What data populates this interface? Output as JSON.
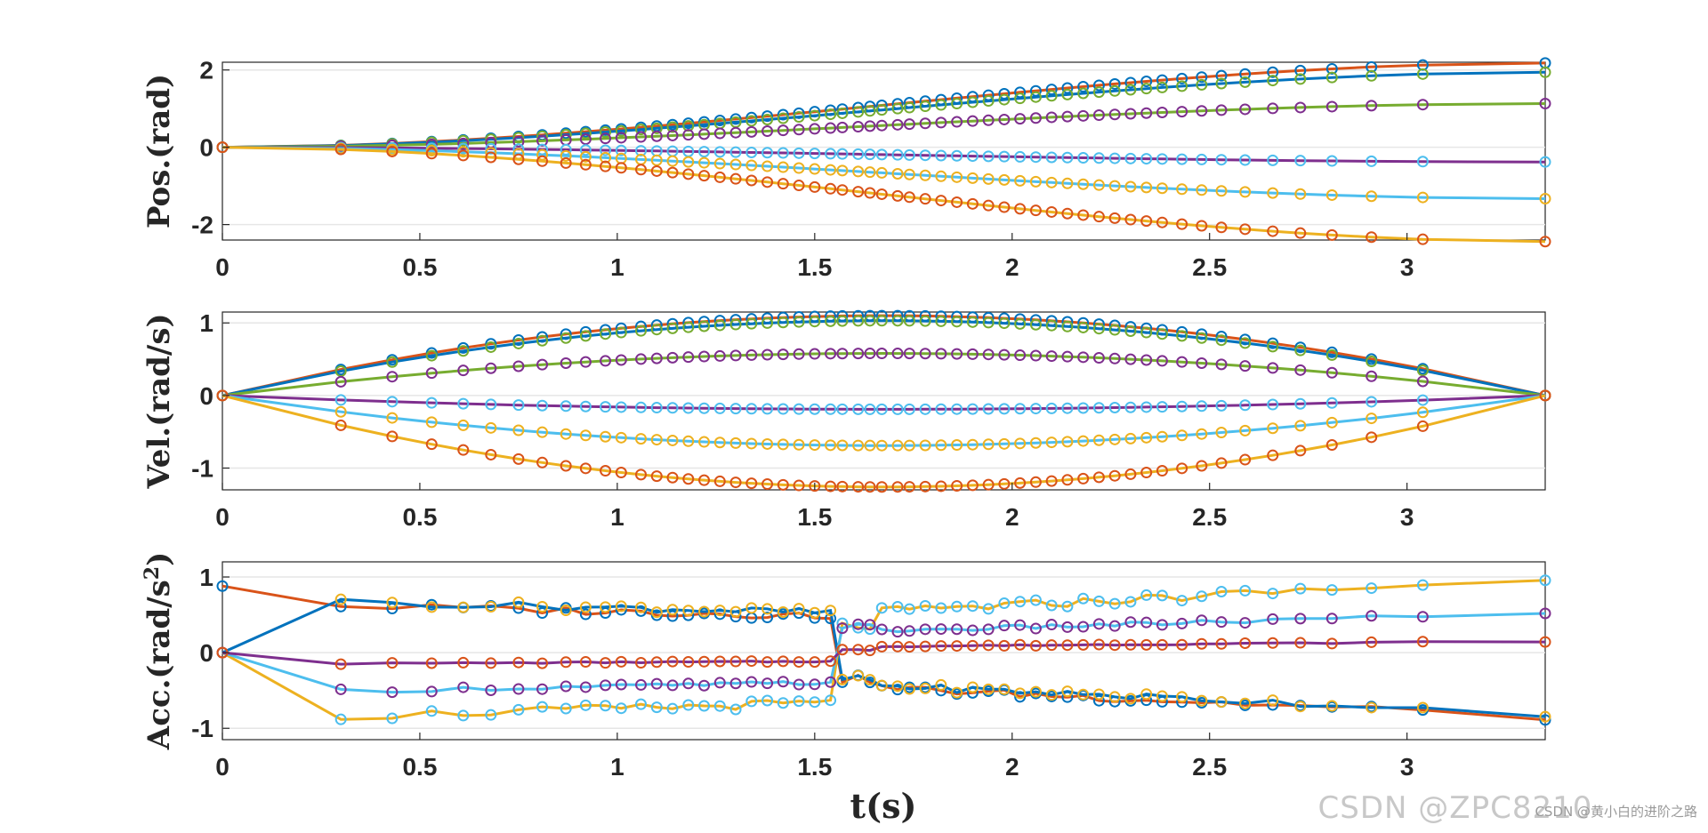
{
  "colors": {
    "blue": "#0072BD",
    "orange": "#D95319",
    "yellow": "#EDB120",
    "purple": "#7E2F8E",
    "green": "#77AC30",
    "cyan": "#4DBEEE"
  },
  "watermark": {
    "main": "CSDN @ZPC8210",
    "sub": "CSDN @黄小白的进阶之路"
  },
  "chart_data": [
    {
      "type": "line",
      "title": "",
      "xlabel": "",
      "ylabel": "Pos.(rad)",
      "xlim": [
        0,
        3.35
      ],
      "ylim": [
        -2.4,
        2.2
      ],
      "xticks": [
        0,
        0.5,
        1,
        1.5,
        2,
        2.5,
        3
      ],
      "xtick_labels": [
        "0",
        "0.5",
        "1",
        "1.5",
        "2",
        "2.5",
        "3"
      ],
      "yticks": [
        -2,
        0,
        2
      ],
      "ytick_labels": [
        "-2",
        "0",
        "2"
      ],
      "grid": true,
      "markers": "o",
      "x_points_desc": "sample times 0, 0.3, 0.43, 0.53, 0.61 ... 2.91, 3.35 (non-uniform)",
      "series": [
        {
          "color": "orange",
          "values": [
            0,
            2.18
          ]
        },
        {
          "color": "blue",
          "values": [
            0,
            1.94
          ]
        },
        {
          "color": "green",
          "values": [
            0,
            1.13
          ]
        },
        {
          "color": "purple",
          "values": [
            0,
            -0.38
          ]
        },
        {
          "color": "cyan",
          "values": [
            0,
            -1.33
          ]
        },
        {
          "color": "yellow",
          "values": [
            0,
            -2.44
          ]
        }
      ]
    },
    {
      "type": "line",
      "title": "",
      "xlabel": "",
      "ylabel": "Vel.(rad/s)",
      "xlim": [
        0,
        3.35
      ],
      "ylim": [
        -1.3,
        1.15
      ],
      "xticks": [
        0,
        0.5,
        1,
        1.5,
        2,
        2.5,
        3
      ],
      "xtick_labels": [
        "0",
        "0.5",
        "1",
        "1.5",
        "2",
        "2.5",
        "3"
      ],
      "yticks": [
        -1,
        0,
        1
      ],
      "ytick_labels": [
        "-1",
        "0",
        "1"
      ],
      "grid": true,
      "markers": "o",
      "series": [
        {
          "color": "orange",
          "peak": 1.1
        },
        {
          "color": "blue",
          "peak": 1.03
        },
        {
          "color": "green",
          "peak": 0.58
        },
        {
          "color": "purple",
          "peak": -0.19
        },
        {
          "color": "cyan",
          "peak": -0.69
        },
        {
          "color": "yellow",
          "peak": -1.26
        }
      ]
    },
    {
      "type": "line",
      "title": "",
      "xlabel": "t(s)",
      "ylabel": "Acc.(rad/s²)",
      "ylabel_main": "Acc.(rad/s",
      "ylabel_sup": "2",
      "ylabel_close": ")",
      "xlim": [
        0,
        3.35
      ],
      "ylim": [
        -1.15,
        1.2
      ],
      "xticks": [
        0,
        0.5,
        1,
        1.5,
        2,
        2.5,
        3
      ],
      "xtick_labels": [
        "0",
        "0.5",
        "1",
        "1.5",
        "2",
        "2.5",
        "3"
      ],
      "yticks": [
        -1,
        0,
        1
      ],
      "ytick_labels": [
        "-1",
        "0",
        "1"
      ],
      "grid": true,
      "markers": "o",
      "series": [
        {
          "color": "orange",
          "start": 0.88,
          "mid": 0.55,
          "end": -0.85
        },
        {
          "color": "blue",
          "start": 0.0,
          "mid": 0.6,
          "end": -0.8
        },
        {
          "color": "yellow",
          "start": 0.0,
          "mid": -0.75,
          "end": 0.98
        },
        {
          "color": "cyan",
          "start": 0.0,
          "mid": -0.45,
          "end": 0.52
        },
        {
          "color": "purple",
          "start": 0.0,
          "mid": -0.13,
          "end": 0.15
        }
      ]
    }
  ]
}
